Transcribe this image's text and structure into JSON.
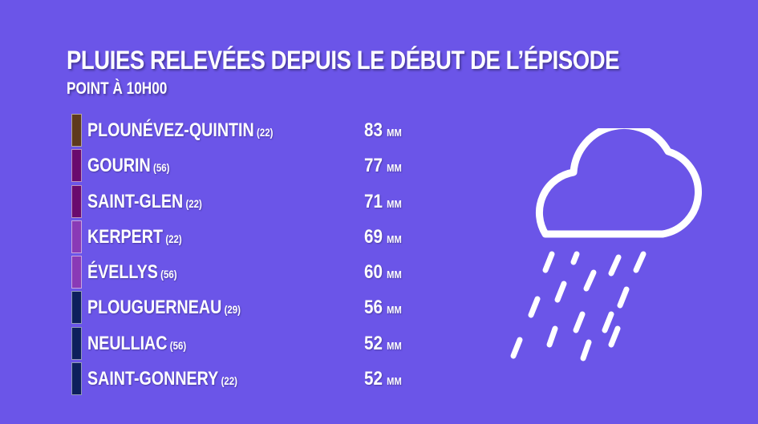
{
  "header": {
    "title": "PLUIES RELEVÉES DEPUIS LE DÉBUT DE L’ÉPISODE",
    "subtitle": "POINT À 10H00"
  },
  "stations": [
    {
      "city": "PLOUNÉVEZ-QUINTIN",
      "dept": "(22)",
      "value": "83",
      "unit": "MM",
      "color": "#5e3a1c"
    },
    {
      "city": "GOURIN",
      "dept": "(56)",
      "value": "77",
      "unit": "MM",
      "color": "#6a0a6e"
    },
    {
      "city": "SAINT-GLEN",
      "dept": "(22)",
      "value": "71",
      "unit": "MM",
      "color": "#6a0a6e"
    },
    {
      "city": "KERPERT",
      "dept": "(22)",
      "value": "69",
      "unit": "MM",
      "color": "#8a3ab6"
    },
    {
      "city": "ÉVELLYS",
      "dept": "(56)",
      "value": "60",
      "unit": "MM",
      "color": "#8a3ab6"
    },
    {
      "city": "PLOUGUERNEAU",
      "dept": "(29)",
      "value": "56",
      "unit": "MM",
      "color": "#0d1f5c"
    },
    {
      "city": "NEULLIAC",
      "dept": "(56)",
      "value": "52",
      "unit": "MM",
      "color": "#0d1f5c"
    },
    {
      "city": "SAINT-GONNERY",
      "dept": "(22)",
      "value": "52",
      "unit": "MM",
      "color": "#0d1f5c"
    }
  ],
  "icon": "rain-cloud-icon",
  "colors": {
    "background": "#6b55e8",
    "text": "#ffffff"
  }
}
